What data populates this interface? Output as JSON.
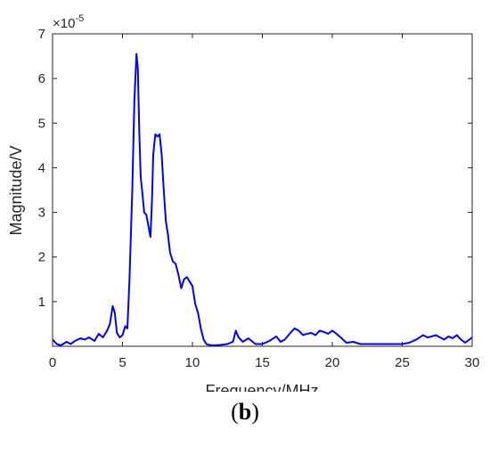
{
  "chart_data": {
    "type": "line",
    "title": "",
    "xlabel": "Frequency/MHz",
    "ylabel": "Magnitude/V",
    "y_multiplier": "×10",
    "y_exponent": "-5",
    "xlim": [
      0,
      30
    ],
    "ylim": [
      0,
      7
    ],
    "x_ticks": [
      0,
      5,
      10,
      15,
      20,
      25,
      30
    ],
    "y_ticks": [
      1,
      2,
      3,
      4,
      5,
      6,
      7
    ],
    "grid": false,
    "line_color": "#0000ff",
    "series": [
      {
        "x": [
          0,
          0.3,
          0.6,
          1.0,
          1.3,
          1.6,
          2.0,
          2.3,
          2.6,
          3.0,
          3.3,
          3.6,
          3.9,
          4.1,
          4.3,
          4.45,
          4.6,
          4.8,
          5.0,
          5.2,
          5.35,
          5.5,
          5.7,
          5.85,
          6.0,
          6.1,
          6.2,
          6.3,
          6.4,
          6.55,
          6.7,
          6.85,
          7.0,
          7.1,
          7.2,
          7.35,
          7.5,
          7.65,
          7.8,
          7.95,
          8.1,
          8.25,
          8.4,
          8.6,
          8.8,
          9.0,
          9.2,
          9.4,
          9.6,
          9.8,
          10.0,
          10.2,
          10.4,
          10.6,
          10.8,
          11.0,
          11.2,
          11.5,
          12.0,
          12.5,
          12.9,
          13.1,
          13.3,
          13.6,
          14.0,
          14.5,
          15.0,
          15.5,
          16.0,
          16.3,
          16.6,
          17.0,
          17.3,
          17.6,
          17.9,
          18.2,
          18.5,
          18.8,
          19.1,
          19.4,
          19.7,
          20.0,
          20.3,
          20.6,
          21.0,
          21.5,
          22.0,
          23.0,
          24.0,
          25.0,
          25.5,
          26.0,
          26.5,
          26.8,
          27.1,
          27.4,
          27.7,
          28.0,
          28.3,
          28.6,
          28.9,
          29.2,
          29.5,
          29.8,
          30.0
        ],
        "values": [
          0.15,
          0.05,
          0.02,
          0.1,
          0.05,
          0.12,
          0.18,
          0.15,
          0.2,
          0.12,
          0.28,
          0.2,
          0.35,
          0.5,
          0.9,
          0.75,
          0.3,
          0.2,
          0.25,
          0.45,
          0.4,
          1.5,
          3.5,
          5.5,
          6.55,
          6.2,
          4.8,
          3.8,
          3.5,
          3.0,
          2.95,
          2.7,
          2.45,
          3.2,
          4.3,
          4.75,
          4.7,
          4.75,
          4.3,
          3.5,
          2.8,
          2.5,
          2.1,
          1.9,
          1.85,
          1.6,
          1.3,
          1.5,
          1.55,
          1.45,
          1.35,
          0.95,
          0.75,
          0.4,
          0.15,
          0.05,
          0.03,
          0.02,
          0.03,
          0.05,
          0.1,
          0.35,
          0.2,
          0.1,
          0.18,
          0.05,
          0.05,
          0.12,
          0.22,
          0.1,
          0.15,
          0.3,
          0.4,
          0.35,
          0.25,
          0.28,
          0.3,
          0.25,
          0.35,
          0.32,
          0.28,
          0.35,
          0.28,
          0.2,
          0.08,
          0.1,
          0.05,
          0.05,
          0.05,
          0.05,
          0.08,
          0.15,
          0.25,
          0.2,
          0.22,
          0.25,
          0.2,
          0.15,
          0.22,
          0.18,
          0.25,
          0.15,
          0.08,
          0.15,
          0.2
        ]
      }
    ]
  },
  "caption": {
    "open": "(",
    "letter": "b",
    "close": ")"
  }
}
